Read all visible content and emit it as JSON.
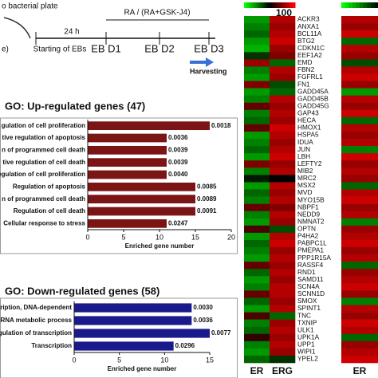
{
  "timeline": {
    "source": "o bacterial plate",
    "left_note": "e)",
    "interval": "24 h",
    "treatment": "RA / (RA+GSK-J4)",
    "start": "Starting of EBs",
    "days": [
      "EB D1",
      "EB D2",
      "EB D3"
    ],
    "harvest": "Harvesting"
  },
  "chart_data": [
    {
      "type": "hbar",
      "title": "GO: Up-regulated genes (47)",
      "xlabel": "Enriched gene number",
      "color": "#7b1414",
      "categories": [
        "gulation of cell proliferation",
        "tive regulation of apoptosis",
        "n of programmed cell death",
        "tive regulation of cell death",
        "tive regulation of cell proliferation",
        "Regulation of apoptosis",
        "n of programmed cell death",
        "Regulation of cell death",
        "Cellular response to stress"
      ],
      "values": [
        17,
        11,
        11,
        11,
        11,
        15,
        15,
        15,
        11
      ],
      "value_labels": [
        "0.0018",
        "0.0036",
        "0.0039",
        "0.0039",
        "0.0040",
        "0.0085",
        "0.0089",
        "0.0091",
        "0.0247"
      ],
      "xlim": [
        0,
        20
      ],
      "xticks": [
        0,
        5,
        10,
        15,
        20
      ]
    },
    {
      "type": "hbar",
      "title": "GO: Down-regulated genes (58)",
      "xlabel": "Enriched gene number",
      "color": "#1a1a8c",
      "categories": [
        "ranscription, DNA-dependent",
        "of RNA metabolic process",
        "egulation of transcription",
        "Transcription"
      ],
      "values": [
        13,
        13,
        15,
        11
      ],
      "value_labels": [
        "0.0030",
        "0.0036",
        "0.0077",
        "0.0296"
      ],
      "xlim": [
        0,
        15
      ],
      "xticks": [
        0,
        5,
        10,
        15
      ]
    },
    {
      "type": "heatmap",
      "colorbar_label": "100",
      "zlim": [
        0,
        100
      ],
      "rows": [
        "ACKR3",
        "ANXA1",
        "BCL11A",
        "BTG2",
        "CDKN1C",
        "EEF1A2",
        "EMD",
        "FBN2",
        "FGFRL1",
        "FN1",
        "GADD45A",
        "GADD45B",
        "GADD45G",
        "GAP43",
        "HECA",
        "HMOX1",
        "HSPA5",
        "IDUA",
        "JUN",
        "LBH",
        "LEFTY2",
        "MIB2",
        "MRC2",
        "MSX2",
        "MVD",
        "MYO15B",
        "NBPF1",
        "NEDD9",
        "NMNAT2",
        "OPTN",
        "P4HA2",
        "PABPC1L",
        "PMEPA1",
        "PPP1R15A",
        "RASSF4",
        "RND1",
        "SAMD11",
        "SCN4A",
        "SCNN1D",
        "SMOX",
        "SPINT1",
        "TNC",
        "TXNIP",
        "ULK1",
        "UPK1A",
        "UPP1",
        "WIPI1",
        "YPEL2"
      ],
      "columns": [
        "ER",
        "ERG"
      ],
      "values": [
        [
          20,
          85
        ],
        [
          25,
          80
        ],
        [
          30,
          85
        ],
        [
          20,
          90
        ],
        [
          15,
          80
        ],
        [
          40,
          75
        ],
        [
          80,
          30
        ],
        [
          25,
          85
        ],
        [
          20,
          80
        ],
        [
          75,
          35
        ],
        [
          20,
          30
        ],
        [
          25,
          85
        ],
        [
          70,
          80
        ],
        [
          25,
          85
        ],
        [
          30,
          80
        ],
        [
          70,
          90
        ],
        [
          20,
          85
        ],
        [
          25,
          80
        ],
        [
          30,
          85
        ],
        [
          20,
          90
        ],
        [
          75,
          80
        ],
        [
          25,
          85
        ],
        [
          45,
          50
        ],
        [
          20,
          85
        ],
        [
          30,
          80
        ],
        [
          25,
          85
        ],
        [
          70,
          75
        ],
        [
          25,
          85
        ],
        [
          20,
          80
        ],
        [
          65,
          35
        ],
        [
          20,
          85
        ],
        [
          30,
          90
        ],
        [
          25,
          80
        ],
        [
          20,
          85
        ],
        [
          70,
          80
        ],
        [
          30,
          85
        ],
        [
          20,
          80
        ],
        [
          25,
          85
        ],
        [
          70,
          85
        ],
        [
          30,
          80
        ],
        [
          20,
          85
        ],
        [
          65,
          30
        ],
        [
          25,
          80
        ],
        [
          30,
          85
        ],
        [
          60,
          80
        ],
        [
          25,
          85
        ],
        [
          20,
          80
        ],
        [
          30,
          40
        ]
      ]
    },
    {
      "type": "heatmap",
      "zlim": [
        0,
        100
      ],
      "columns": [
        "ER"
      ],
      "values": [
        [
          85
        ],
        [
          80
        ],
        [
          90
        ],
        [
          30
        ],
        [
          85
        ],
        [
          80
        ],
        [
          35
        ],
        [
          85
        ],
        [
          90
        ],
        [
          80
        ],
        [
          20
        ],
        [
          85
        ],
        [
          80
        ],
        [
          90
        ],
        [
          30
        ],
        [
          85
        ],
        [
          80
        ],
        [
          85
        ],
        [
          25
        ],
        [
          90
        ],
        [
          80
        ],
        [
          85
        ],
        [
          80
        ],
        [
          30
        ],
        [
          85
        ],
        [
          90
        ],
        [
          80
        ],
        [
          85
        ],
        [
          25
        ],
        [
          80
        ],
        [
          85
        ],
        [
          90
        ],
        [
          80
        ],
        [
          85
        ],
        [
          30
        ],
        [
          80
        ],
        [
          85
        ],
        [
          90
        ],
        [
          80
        ],
        [
          25
        ],
        [
          85
        ],
        [
          80
        ],
        [
          90
        ],
        [
          85
        ],
        [
          30
        ],
        [
          80
        ],
        [
          85
        ],
        [
          90
        ]
      ]
    }
  ]
}
